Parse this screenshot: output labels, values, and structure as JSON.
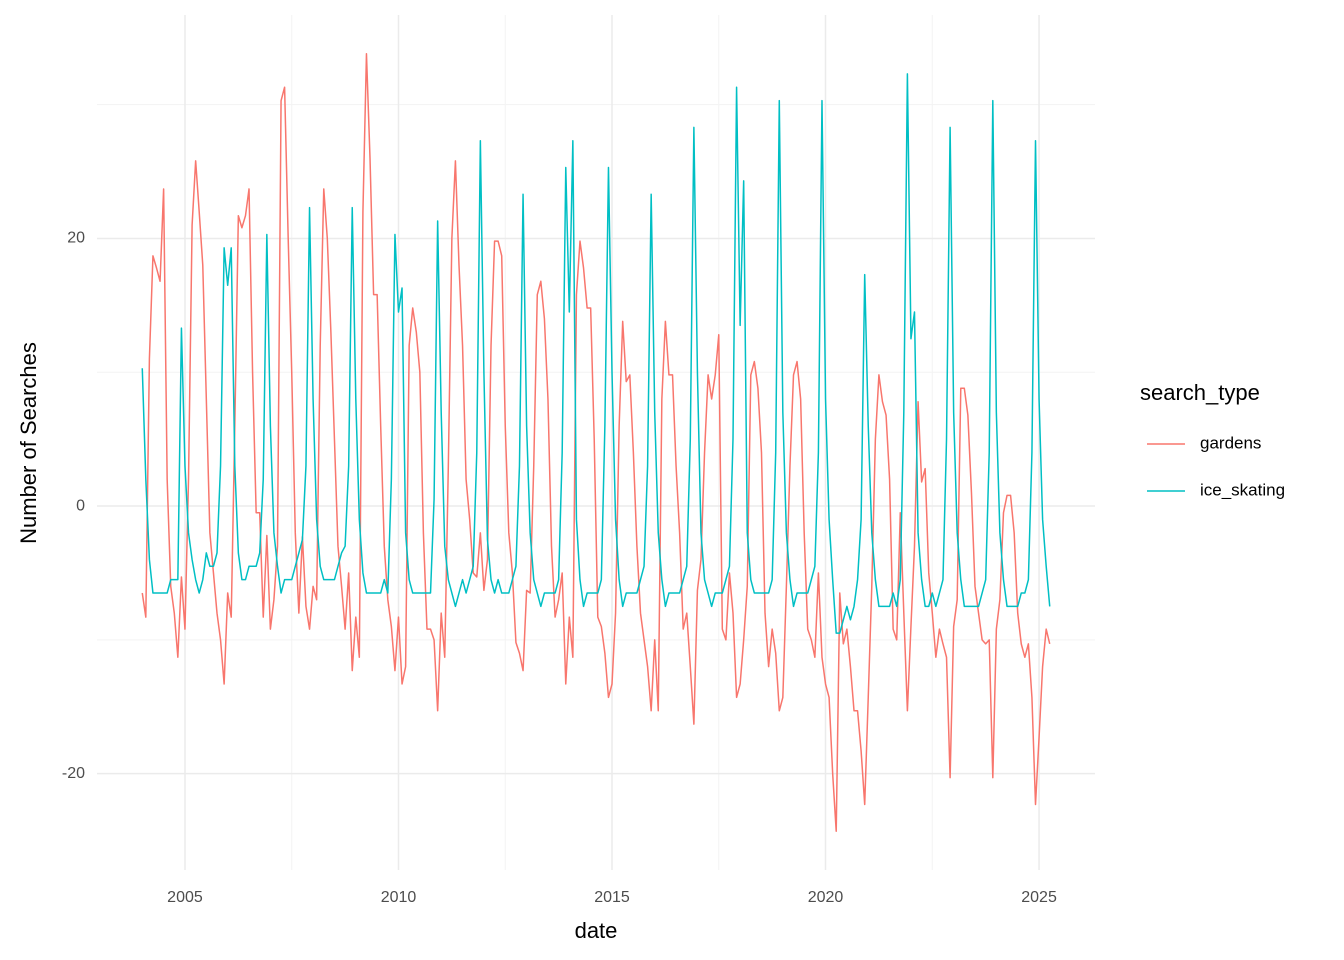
{
  "chart_data": {
    "type": "line",
    "x_label": "date",
    "y_label": "Number of Searches",
    "legend_title": "search_type",
    "legend": "right",
    "grid": true,
    "xlim": [
      2002.94,
      2026.31
    ],
    "ylim": [
      -27.2,
      36.7
    ],
    "xticks": [
      2005,
      2010,
      2015,
      2020,
      2025
    ],
    "yticks": [
      -20,
      0,
      20
    ],
    "x_minor_ticks": [
      2007.5,
      2012.5,
      2017.5,
      2022.5
    ],
    "y_minor_ticks": [
      -10,
      10,
      30
    ],
    "x": [
      2004,
      2004.083,
      2004.167,
      2004.25,
      2004.333,
      2004.417,
      2004.5,
      2004.583,
      2004.667,
      2004.75,
      2004.833,
      2004.917,
      2005,
      2005.083,
      2005.167,
      2005.25,
      2005.333,
      2005.417,
      2005.5,
      2005.583,
      2005.667,
      2005.75,
      2005.833,
      2005.917,
      2006,
      2006.083,
      2006.167,
      2006.25,
      2006.333,
      2006.417,
      2006.5,
      2006.583,
      2006.667,
      2006.75,
      2006.833,
      2006.917,
      2007,
      2007.083,
      2007.167,
      2007.25,
      2007.333,
      2007.417,
      2007.5,
      2007.583,
      2007.667,
      2007.75,
      2007.833,
      2007.917,
      2008,
      2008.083,
      2008.167,
      2008.25,
      2008.333,
      2008.417,
      2008.5,
      2008.583,
      2008.667,
      2008.75,
      2008.833,
      2008.917,
      2009,
      2009.083,
      2009.167,
      2009.25,
      2009.333,
      2009.417,
      2009.5,
      2009.583,
      2009.667,
      2009.75,
      2009.833,
      2009.917,
      2010,
      2010.083,
      2010.167,
      2010.25,
      2010.333,
      2010.417,
      2010.5,
      2010.583,
      2010.667,
      2010.75,
      2010.833,
      2010.917,
      2011,
      2011.083,
      2011.167,
      2011.25,
      2011.333,
      2011.417,
      2011.5,
      2011.583,
      2011.667,
      2011.75,
      2011.833,
      2011.917,
      2012,
      2012.083,
      2012.167,
      2012.25,
      2012.333,
      2012.417,
      2012.5,
      2012.583,
      2012.667,
      2012.75,
      2012.833,
      2012.917,
      2013,
      2013.083,
      2013.167,
      2013.25,
      2013.333,
      2013.417,
      2013.5,
      2013.583,
      2013.667,
      2013.75,
      2013.833,
      2013.917,
      2014,
      2014.083,
      2014.167,
      2014.25,
      2014.333,
      2014.417,
      2014.5,
      2014.583,
      2014.667,
      2014.75,
      2014.833,
      2014.917,
      2015,
      2015.083,
      2015.167,
      2015.25,
      2015.333,
      2015.417,
      2015.5,
      2015.583,
      2015.667,
      2015.75,
      2015.833,
      2015.917,
      2016,
      2016.083,
      2016.167,
      2016.25,
      2016.333,
      2016.417,
      2016.5,
      2016.583,
      2016.667,
      2016.75,
      2016.833,
      2016.917,
      2017,
      2017.083,
      2017.167,
      2017.25,
      2017.333,
      2017.417,
      2017.5,
      2017.583,
      2017.667,
      2017.75,
      2017.833,
      2017.917,
      2018,
      2018.083,
      2018.167,
      2018.25,
      2018.333,
      2018.417,
      2018.5,
      2018.583,
      2018.667,
      2018.75,
      2018.833,
      2018.917,
      2019,
      2019.083,
      2019.167,
      2019.25,
      2019.333,
      2019.417,
      2019.5,
      2019.583,
      2019.667,
      2019.75,
      2019.833,
      2019.917,
      2020,
      2020.083,
      2020.167,
      2020.25,
      2020.333,
      2020.417,
      2020.5,
      2020.583,
      2020.667,
      2020.75,
      2020.833,
      2020.917,
      2021,
      2021.083,
      2021.167,
      2021.25,
      2021.333,
      2021.417,
      2021.5,
      2021.583,
      2021.667,
      2021.75,
      2021.833,
      2021.917,
      2022,
      2022.083,
      2022.167,
      2022.25,
      2022.333,
      2022.417,
      2022.5,
      2022.583,
      2022.667,
      2022.75,
      2022.833,
      2022.917,
      2023,
      2023.083,
      2023.167,
      2023.25,
      2023.333,
      2023.417,
      2023.5,
      2023.583,
      2023.667,
      2023.75,
      2023.833,
      2023.917,
      2024,
      2024.083,
      2024.167,
      2024.25,
      2024.333,
      2024.417,
      2024.5,
      2024.583,
      2024.667,
      2024.75,
      2024.833,
      2024.917,
      2025,
      2025.083,
      2025.167,
      2025.25
    ],
    "series": [
      {
        "name": "gardens",
        "color": "#F8766D",
        "values": [
          -6.5,
          -8.3,
          11.0,
          18.7,
          17.8,
          16.8,
          23.7,
          2.0,
          -6.0,
          -8.0,
          -11.3,
          -5.3,
          -9.2,
          2.0,
          21.0,
          25.8,
          22.0,
          18.0,
          8.0,
          -2.0,
          -5.0,
          -8.0,
          -10.0,
          -13.3,
          -6.5,
          -8.3,
          6.0,
          21.7,
          20.8,
          21.7,
          23.7,
          10.0,
          -0.5,
          -0.5,
          -8.3,
          -2.2,
          -9.2,
          -7.0,
          -3.0,
          30.3,
          31.3,
          20.0,
          10.0,
          -2.0,
          -8.0,
          -2.3,
          -7.5,
          -9.2,
          -6.0,
          -7.0,
          12.0,
          23.7,
          20.0,
          13.0,
          5.0,
          -3.0,
          -6.0,
          -9.2,
          -5.0,
          -12.3,
          -8.3,
          -11.3,
          22.0,
          33.8,
          26.0,
          15.8,
          15.8,
          6.0,
          -3.0,
          -7.0,
          -9.0,
          -12.3,
          -8.3,
          -13.3,
          -12.0,
          12.0,
          14.8,
          13.0,
          10.0,
          -2.0,
          -9.2,
          -9.2,
          -10.0,
          -15.3,
          -8.0,
          -11.3,
          3.0,
          20.0,
          25.8,
          18.0,
          12.0,
          2.0,
          -1.0,
          -5.0,
          -5.3,
          -2.0,
          -6.3,
          -4.0,
          12.0,
          19.8,
          19.8,
          18.7,
          6.0,
          -2.0,
          -5.0,
          -10.2,
          -11.0,
          -12.3,
          -6.3,
          -6.5,
          3.0,
          15.8,
          16.8,
          14.0,
          8.0,
          -3.0,
          -8.3,
          -7.0,
          -5.0,
          -13.3,
          -8.3,
          -11.3,
          15.8,
          19.8,
          17.8,
          14.8,
          14.8,
          5.0,
          -8.3,
          -9.0,
          -11.0,
          -14.3,
          -13.3,
          -8.0,
          6.0,
          13.8,
          9.3,
          9.8,
          4.0,
          -3.0,
          -8.0,
          -10.0,
          -12.0,
          -15.3,
          -10.0,
          -15.3,
          8.0,
          13.8,
          9.8,
          9.8,
          3.0,
          -2.0,
          -9.2,
          -8.0,
          -12.0,
          -16.3,
          -6.3,
          -4.0,
          4.0,
          9.8,
          8.0,
          9.8,
          12.8,
          -9.2,
          -10.0,
          -5.0,
          -8.0,
          -14.3,
          -13.3,
          -10.0,
          -6.0,
          9.8,
          10.8,
          8.8,
          4.0,
          -8.0,
          -12.0,
          -9.2,
          -11.0,
          -15.3,
          -14.3,
          -6.0,
          3.0,
          9.8,
          10.8,
          8.0,
          -2.0,
          -9.2,
          -10.0,
          -11.3,
          -5.0,
          -11.3,
          -13.3,
          -14.3,
          -20.0,
          -24.3,
          -6.5,
          -10.3,
          -9.2,
          -12.0,
          -15.3,
          -15.3,
          -18.3,
          -22.3,
          -14.3,
          -6.0,
          5.0,
          9.8,
          7.8,
          6.8,
          2.0,
          -9.2,
          -10.0,
          -0.5,
          -8.0,
          -15.3,
          -9.0,
          -3.0,
          7.8,
          1.8,
          2.8,
          -5.0,
          -8.0,
          -11.3,
          -9.2,
          -10.3,
          -11.3,
          -20.3,
          -9.0,
          -7.0,
          8.8,
          8.8,
          6.8,
          1.0,
          -6.0,
          -8.0,
          -10.0,
          -10.3,
          -10.0,
          -20.3,
          -9.2,
          -7.0,
          -0.5,
          0.8,
          0.8,
          -2.0,
          -8.0,
          -10.3,
          -11.3,
          -10.3,
          -14.3,
          -22.3,
          -17.3,
          -12.0,
          -9.2,
          -10.3
        ]
      },
      {
        "name": "ice_skating",
        "color": "#00BFC4",
        "values": [
          10.3,
          2.0,
          -4.0,
          -6.5,
          -6.5,
          -6.5,
          -6.5,
          -6.5,
          -5.5,
          -5.5,
          -5.5,
          13.3,
          3.0,
          -2.0,
          -4.0,
          -5.5,
          -6.5,
          -5.5,
          -3.5,
          -4.5,
          -4.5,
          -3.5,
          3.0,
          19.3,
          16.5,
          19.3,
          3.0,
          -3.5,
          -5.5,
          -5.5,
          -4.5,
          -4.5,
          -4.5,
          -3.5,
          2.0,
          20.3,
          6.0,
          -2.0,
          -4.5,
          -6.5,
          -5.5,
          -5.5,
          -5.5,
          -4.5,
          -3.5,
          -2.5,
          3.0,
          22.3,
          8.0,
          -1.0,
          -4.5,
          -5.5,
          -5.5,
          -5.5,
          -5.5,
          -4.5,
          -3.5,
          -3.0,
          3.0,
          22.3,
          8.0,
          -1.0,
          -5.0,
          -6.5,
          -6.5,
          -6.5,
          -6.5,
          -6.5,
          -5.5,
          -6.5,
          2.0,
          20.3,
          14.5,
          16.3,
          -2.0,
          -5.5,
          -6.5,
          -6.5,
          -6.5,
          -6.5,
          -6.5,
          -6.5,
          0.5,
          21.3,
          7.0,
          -3.0,
          -5.5,
          -6.5,
          -7.5,
          -6.5,
          -5.5,
          -6.5,
          -5.5,
          -4.5,
          4.0,
          27.3,
          10.0,
          -2.5,
          -5.5,
          -6.5,
          -5.5,
          -6.5,
          -6.5,
          -6.5,
          -5.5,
          -4.5,
          3.0,
          23.3,
          6.0,
          -2.0,
          -5.5,
          -6.5,
          -7.5,
          -6.5,
          -6.5,
          -6.5,
          -6.5,
          -5.5,
          4.0,
          25.3,
          14.5,
          27.3,
          -1.0,
          -5.5,
          -7.5,
          -6.5,
          -6.5,
          -6.5,
          -6.5,
          -5.5,
          6.0,
          25.3,
          10.0,
          -1.0,
          -5.5,
          -7.5,
          -6.5,
          -6.5,
          -6.5,
          -6.5,
          -5.5,
          -4.5,
          3.0,
          23.3,
          7.0,
          -2.0,
          -5.5,
          -7.5,
          -6.5,
          -6.5,
          -6.5,
          -6.5,
          -5.5,
          -4.5,
          5.0,
          28.3,
          10.0,
          -2.0,
          -5.5,
          -6.5,
          -7.5,
          -6.5,
          -6.5,
          -6.5,
          -5.5,
          -4.5,
          5.0,
          31.3,
          13.5,
          24.3,
          -2.0,
          -5.5,
          -6.5,
          -6.5,
          -6.5,
          -6.5,
          -6.5,
          -5.5,
          4.0,
          30.3,
          7.0,
          -2.0,
          -5.5,
          -7.5,
          -6.5,
          -6.5,
          -6.5,
          -6.5,
          -5.5,
          -4.5,
          4.0,
          30.3,
          8.0,
          -1.0,
          -5.5,
          -9.5,
          -9.5,
          -8.5,
          -7.5,
          -8.5,
          -7.5,
          -5.5,
          -1.0,
          17.3,
          6.0,
          -2.0,
          -5.5,
          -7.5,
          -7.5,
          -7.5,
          -7.5,
          -6.5,
          -7.5,
          -5.5,
          7.0,
          32.3,
          12.5,
          14.5,
          -2.0,
          -5.5,
          -7.5,
          -7.5,
          -6.5,
          -7.5,
          -6.5,
          -5.5,
          5.0,
          28.3,
          7.0,
          -2.0,
          -5.5,
          -7.5,
          -7.5,
          -7.5,
          -7.5,
          -7.5,
          -6.5,
          -5.5,
          4.0,
          30.3,
          7.0,
          -2.0,
          -5.5,
          -7.5,
          -7.5,
          -7.5,
          -7.5,
          -6.5,
          -6.5,
          -5.5,
          4.0,
          27.3,
          8.0,
          -1.0,
          -4.5,
          -7.5
        ]
      }
    ]
  }
}
